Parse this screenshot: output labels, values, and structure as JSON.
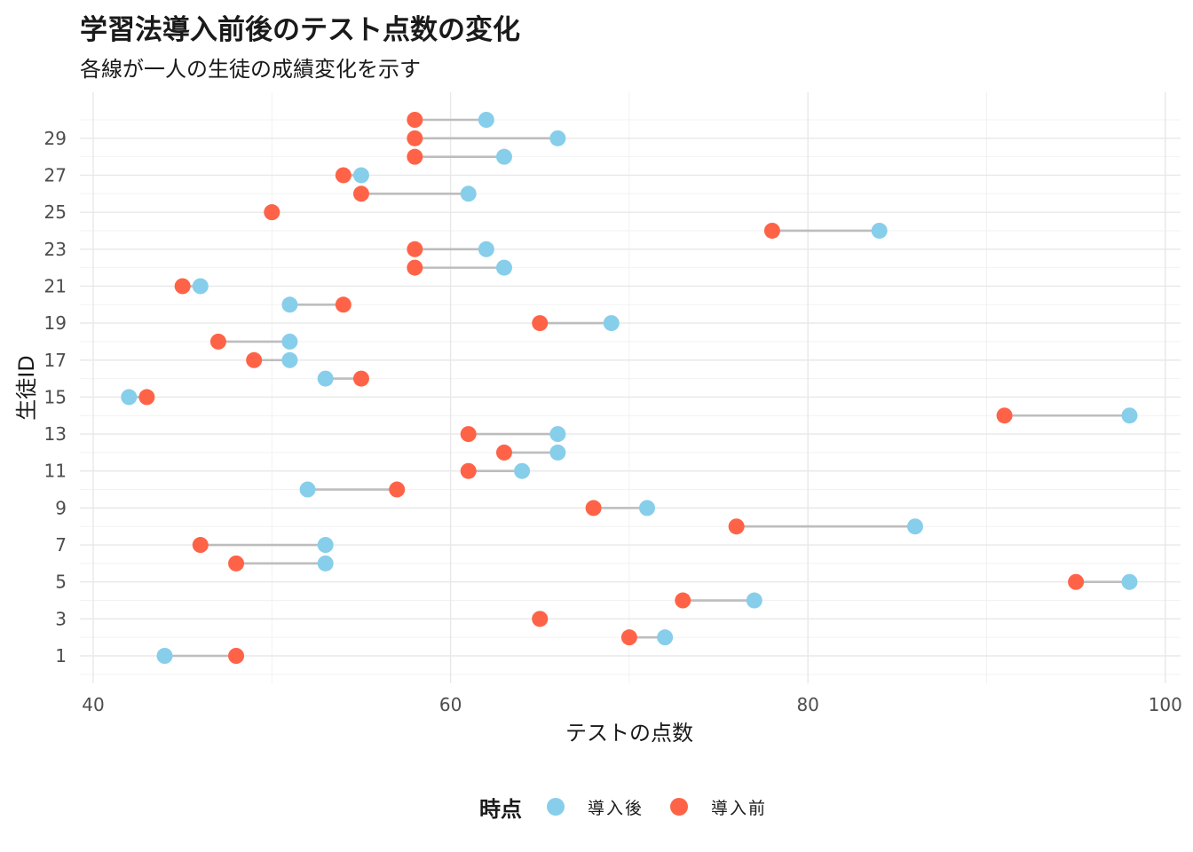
{
  "chart_data": {
    "type": "dumbbell",
    "title": "学習法導入前後のテスト点数の変化",
    "subtitle": "各線が一人の生徒の成績変化を示す",
    "xlabel": "テストの点数",
    "ylabel": "生徒ID",
    "xlim": [
      40,
      100
    ],
    "xticks": [
      40,
      60,
      80,
      100
    ],
    "ylim": [
      1,
      30
    ],
    "yticks": [
      1,
      3,
      5,
      7,
      9,
      11,
      13,
      15,
      17,
      19,
      21,
      23,
      25,
      27,
      29
    ],
    "grid": true,
    "legend": {
      "title": "時点",
      "position": "bottom",
      "entries": [
        {
          "label": "導入後",
          "color": "#87CEEB"
        },
        {
          "label": "導入前",
          "color": "#FF6347"
        }
      ]
    },
    "connector_color": "#bdbdbd",
    "students": [
      {
        "id": 1,
        "before": 48,
        "after": 44
      },
      {
        "id": 2,
        "before": 70,
        "after": 72
      },
      {
        "id": 3,
        "before": 65,
        "after": 65
      },
      {
        "id": 4,
        "before": 73,
        "after": 77
      },
      {
        "id": 5,
        "before": 95,
        "after": 98
      },
      {
        "id": 6,
        "before": 48,
        "after": 53
      },
      {
        "id": 7,
        "before": 46,
        "after": 53
      },
      {
        "id": 8,
        "before": 76,
        "after": 86
      },
      {
        "id": 9,
        "before": 68,
        "after": 71
      },
      {
        "id": 10,
        "before": 57,
        "after": 52
      },
      {
        "id": 11,
        "before": 61,
        "after": 64
      },
      {
        "id": 12,
        "before": 63,
        "after": 66
      },
      {
        "id": 13,
        "before": 61,
        "after": 66
      },
      {
        "id": 14,
        "before": 91,
        "after": 98
      },
      {
        "id": 15,
        "before": 43,
        "after": 42
      },
      {
        "id": 16,
        "before": 55,
        "after": 53
      },
      {
        "id": 17,
        "before": 49,
        "after": 51
      },
      {
        "id": 18,
        "before": 47,
        "after": 51
      },
      {
        "id": 19,
        "before": 65,
        "after": 69
      },
      {
        "id": 20,
        "before": 54,
        "after": 51
      },
      {
        "id": 21,
        "before": 45,
        "after": 46
      },
      {
        "id": 22,
        "before": 58,
        "after": 63
      },
      {
        "id": 23,
        "before": 58,
        "after": 62
      },
      {
        "id": 24,
        "before": 78,
        "after": 84
      },
      {
        "id": 25,
        "before": 50,
        "after": 50
      },
      {
        "id": 26,
        "before": 55,
        "after": 61
      },
      {
        "id": 27,
        "before": 54,
        "after": 55
      },
      {
        "id": 28,
        "before": 58,
        "after": 63
      },
      {
        "id": 29,
        "before": 58,
        "after": 66
      },
      {
        "id": 30,
        "before": 58,
        "after": 62
      }
    ]
  }
}
